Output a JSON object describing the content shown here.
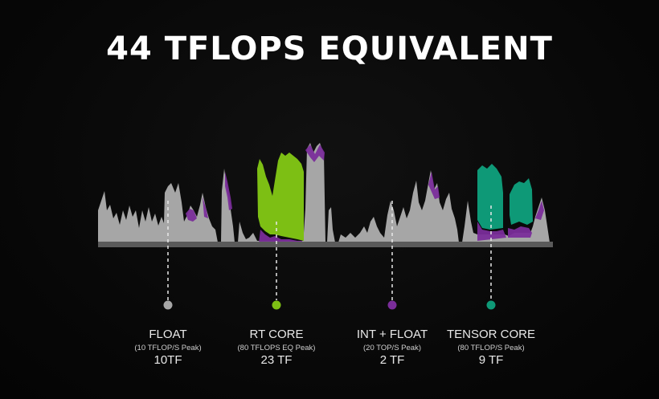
{
  "title": "44 TFLOPS EQUIVALENT",
  "colors": {
    "float": "#a6a6a6",
    "rt_core": "#7dbf14",
    "int_float": "#7a2d9a",
    "tensor_core": "#0e9977",
    "baseline": "#5a5a5a"
  },
  "legend": [
    {
      "name": "FLOAT",
      "sub": "(10 TFLOP/S Peak)",
      "value": "10TF",
      "color": "#a6a6a6"
    },
    {
      "name": "RT CORE",
      "sub": "(80 TFLOPS EQ Peak)",
      "value": "23 TF",
      "color": "#7dbf14"
    },
    {
      "name": "INT + FLOAT",
      "sub": "(20 TOP/S Peak)",
      "value": "2 TF",
      "color": "#7a2d9a"
    },
    {
      "name": "TENSOR CORE",
      "sub": "(80 TFLOP/S Peak)",
      "value": "9 TF",
      "color": "#0e9977"
    }
  ]
}
